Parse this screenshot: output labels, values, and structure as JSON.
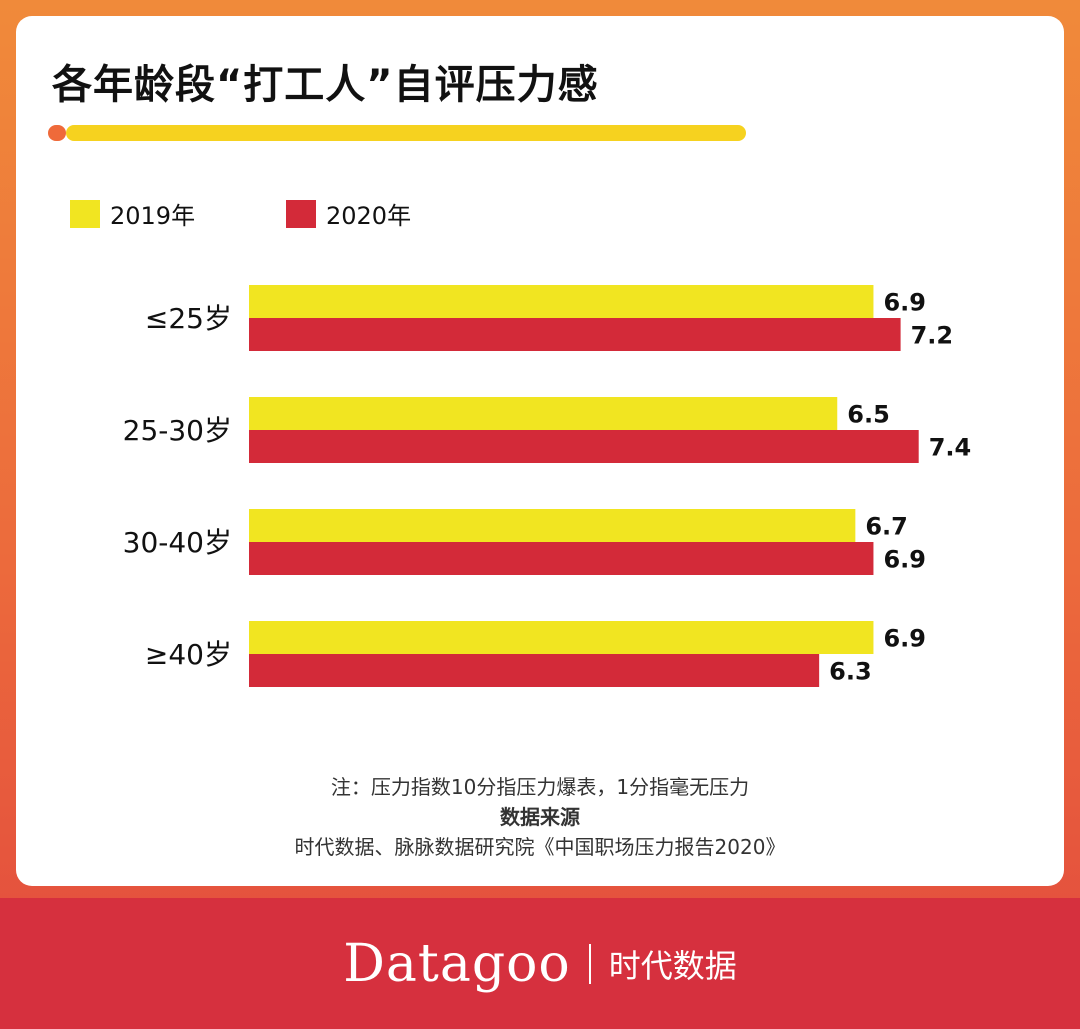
{
  "title": "各年龄段“打工人”自评压力感",
  "legend": [
    {
      "label": "2019年",
      "color": "#f1e521"
    },
    {
      "label": "2020年",
      "color": "#d32a39"
    }
  ],
  "chart_data": {
    "type": "bar",
    "orientation": "horizontal",
    "categories": [
      "≤25岁",
      "25-30岁",
      "30-40岁",
      "≥40岁"
    ],
    "series": [
      {
        "name": "2019年",
        "values": [
          6.9,
          6.5,
          6.7,
          6.9
        ],
        "color": "#f1e521"
      },
      {
        "name": "2020年",
        "values": [
          7.2,
          7.4,
          6.9,
          6.3
        ],
        "color": "#d32a39"
      }
    ],
    "value_labels": [
      [
        "6.9",
        "6.5",
        "6.7",
        "6.9"
      ],
      [
        "7.2",
        "7.4",
        "6.9",
        "6.3"
      ]
    ],
    "xlim": [
      0,
      10
    ],
    "grid": false,
    "legend_position": "top-left"
  },
  "notes": {
    "note": "注：压力指数10分指压力爆表，1分指毫无压力",
    "source_title": "数据来源",
    "source": "时代数据、脉脉数据研究院《中国职场压力报告2020》"
  },
  "footer": {
    "brand_en": "Datagoo",
    "brand_cn": "时代数据"
  }
}
